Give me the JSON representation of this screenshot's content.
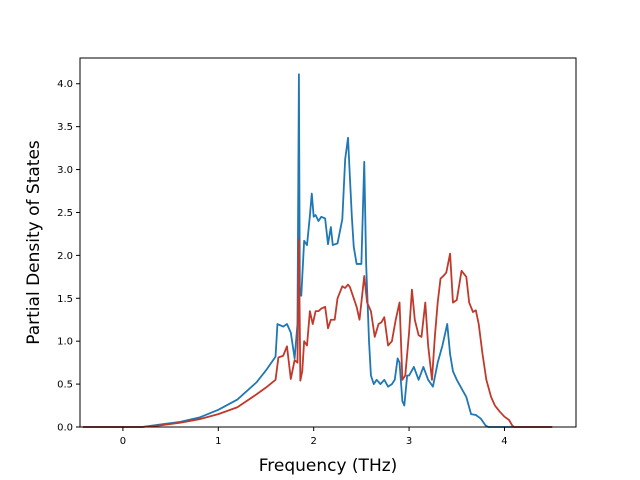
{
  "chart_data": {
    "type": "line",
    "title": "",
    "xlabel": "Frequency (THz)",
    "ylabel": "Partial Density of States",
    "xlim": [
      -0.45,
      4.75
    ],
    "ylim": [
      0,
      4.3
    ],
    "xticks": [
      0,
      1,
      2,
      3,
      4
    ],
    "yticks": [
      0.0,
      0.5,
      1.0,
      1.5,
      2.0,
      2.5,
      3.0,
      3.5,
      4.0
    ],
    "xtick_labels": [
      "0",
      "1",
      "2",
      "3",
      "4"
    ],
    "ytick_labels": [
      "0.0",
      "0.5",
      "1.0",
      "1.5",
      "2.0",
      "2.5",
      "3.0",
      "3.5",
      "4.0"
    ],
    "grid": false,
    "legend": "none",
    "series": [
      {
        "color": "#1f77b4",
        "x": [
          -0.42,
          0.0,
          0.2,
          0.4,
          0.6,
          0.8,
          1.0,
          1.2,
          1.4,
          1.5,
          1.6,
          1.62,
          1.68,
          1.72,
          1.76,
          1.8,
          1.83,
          1.845,
          1.855,
          1.87,
          1.9,
          1.93,
          1.96,
          1.98,
          2.0,
          2.02,
          2.05,
          2.08,
          2.12,
          2.15,
          2.18,
          2.2,
          2.25,
          2.3,
          2.33,
          2.36,
          2.38,
          2.4,
          2.42,
          2.45,
          2.5,
          2.53,
          2.55,
          2.58,
          2.6,
          2.63,
          2.66,
          2.7,
          2.74,
          2.78,
          2.82,
          2.85,
          2.88,
          2.9,
          2.93,
          2.95,
          2.98,
          3.0,
          3.05,
          3.1,
          3.15,
          3.2,
          3.25,
          3.3,
          3.35,
          3.4,
          3.43,
          3.46,
          3.5,
          3.55,
          3.6,
          3.65,
          3.7,
          3.75,
          3.8,
          3.83,
          3.87,
          3.9,
          4.0,
          4.1,
          4.5
        ],
        "y": [
          0.0,
          0.0,
          0.0,
          0.03,
          0.06,
          0.11,
          0.2,
          0.32,
          0.52,
          0.66,
          0.82,
          1.2,
          1.17,
          1.2,
          1.1,
          0.8,
          1.2,
          4.11,
          1.54,
          1.53,
          2.17,
          2.12,
          2.46,
          2.72,
          2.45,
          2.47,
          2.4,
          2.45,
          2.43,
          2.13,
          2.33,
          2.12,
          2.14,
          2.42,
          3.12,
          3.37,
          2.9,
          2.45,
          2.1,
          1.9,
          1.9,
          3.09,
          1.9,
          1.0,
          0.6,
          0.5,
          0.55,
          0.5,
          0.55,
          0.47,
          0.5,
          0.55,
          0.8,
          0.75,
          0.3,
          0.25,
          0.6,
          0.6,
          0.7,
          0.55,
          0.7,
          0.55,
          0.47,
          0.75,
          0.95,
          1.2,
          0.85,
          0.65,
          0.55,
          0.45,
          0.35,
          0.15,
          0.14,
          0.1,
          0.02,
          0.0,
          0.0,
          0.0,
          0.0,
          0.0,
          0.0
        ]
      },
      {
        "color": "#c0392b",
        "x": [
          -0.42,
          0.0,
          0.2,
          0.4,
          0.6,
          0.8,
          1.0,
          1.2,
          1.4,
          1.5,
          1.6,
          1.63,
          1.68,
          1.72,
          1.76,
          1.8,
          1.83,
          1.845,
          1.86,
          1.88,
          1.9,
          1.93,
          1.96,
          1.99,
          2.02,
          2.05,
          2.08,
          2.12,
          2.15,
          2.18,
          2.22,
          2.25,
          2.3,
          2.33,
          2.36,
          2.38,
          2.42,
          2.45,
          2.48,
          2.5,
          2.53,
          2.56,
          2.6,
          2.64,
          2.68,
          2.71,
          2.74,
          2.78,
          2.82,
          2.86,
          2.9,
          2.93,
          2.96,
          3.0,
          3.03,
          3.06,
          3.1,
          3.13,
          3.17,
          3.2,
          3.24,
          3.27,
          3.3,
          3.33,
          3.36,
          3.39,
          3.43,
          3.46,
          3.5,
          3.55,
          3.6,
          3.63,
          3.67,
          3.7,
          3.73,
          3.77,
          3.81,
          3.86,
          3.9,
          3.95,
          4.0,
          4.05,
          4.08,
          4.1,
          4.5
        ],
        "y": [
          0.0,
          0.0,
          0.0,
          0.02,
          0.05,
          0.09,
          0.15,
          0.23,
          0.38,
          0.46,
          0.55,
          0.81,
          0.83,
          0.94,
          0.56,
          0.78,
          0.75,
          2.19,
          0.54,
          0.65,
          1.0,
          0.95,
          1.35,
          1.2,
          1.35,
          1.35,
          1.38,
          1.4,
          1.15,
          1.25,
          1.25,
          1.5,
          1.64,
          1.62,
          1.66,
          1.63,
          1.5,
          1.4,
          1.25,
          1.45,
          1.76,
          1.45,
          1.35,
          1.05,
          1.2,
          1.22,
          1.28,
          0.95,
          1.0,
          1.25,
          1.45,
          0.55,
          0.6,
          1.1,
          1.6,
          1.25,
          1.07,
          1.05,
          1.45,
          0.95,
          0.55,
          1.05,
          1.45,
          1.73,
          1.76,
          1.8,
          2.02,
          1.45,
          1.48,
          1.82,
          1.75,
          1.45,
          1.34,
          1.36,
          1.2,
          0.85,
          0.55,
          0.35,
          0.25,
          0.18,
          0.12,
          0.08,
          0.02,
          0.0,
          0.0
        ]
      }
    ]
  }
}
